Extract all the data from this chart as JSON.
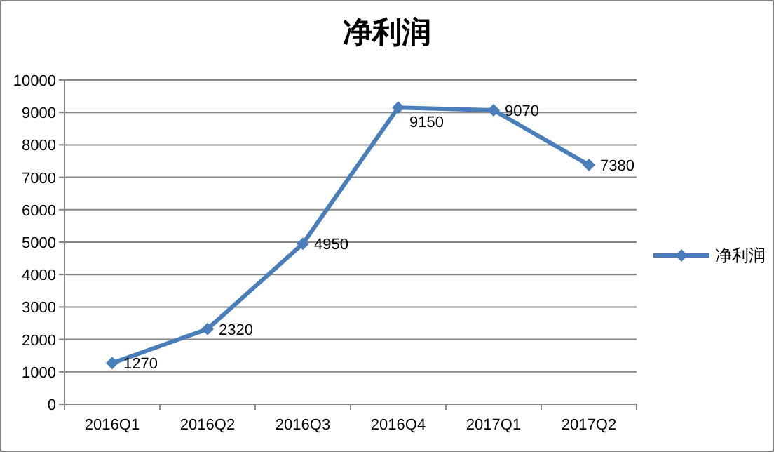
{
  "chart_data": {
    "type": "line",
    "title": "净利润",
    "categories": [
      "2016Q1",
      "2016Q2",
      "2016Q3",
      "2016Q4",
      "2017Q1",
      "2017Q2"
    ],
    "series": [
      {
        "name": "净利润",
        "color": "#4a7ebb",
        "values": [
          1270,
          2320,
          4950,
          9150,
          9070,
          7380
        ]
      }
    ],
    "ylim": [
      0,
      10000
    ],
    "yticks": [
      0,
      1000,
      2000,
      3000,
      4000,
      5000,
      6000,
      7000,
      8000,
      9000,
      10000
    ],
    "grid": "y",
    "legend": "right",
    "marker": "diamond",
    "data_labels": true
  }
}
